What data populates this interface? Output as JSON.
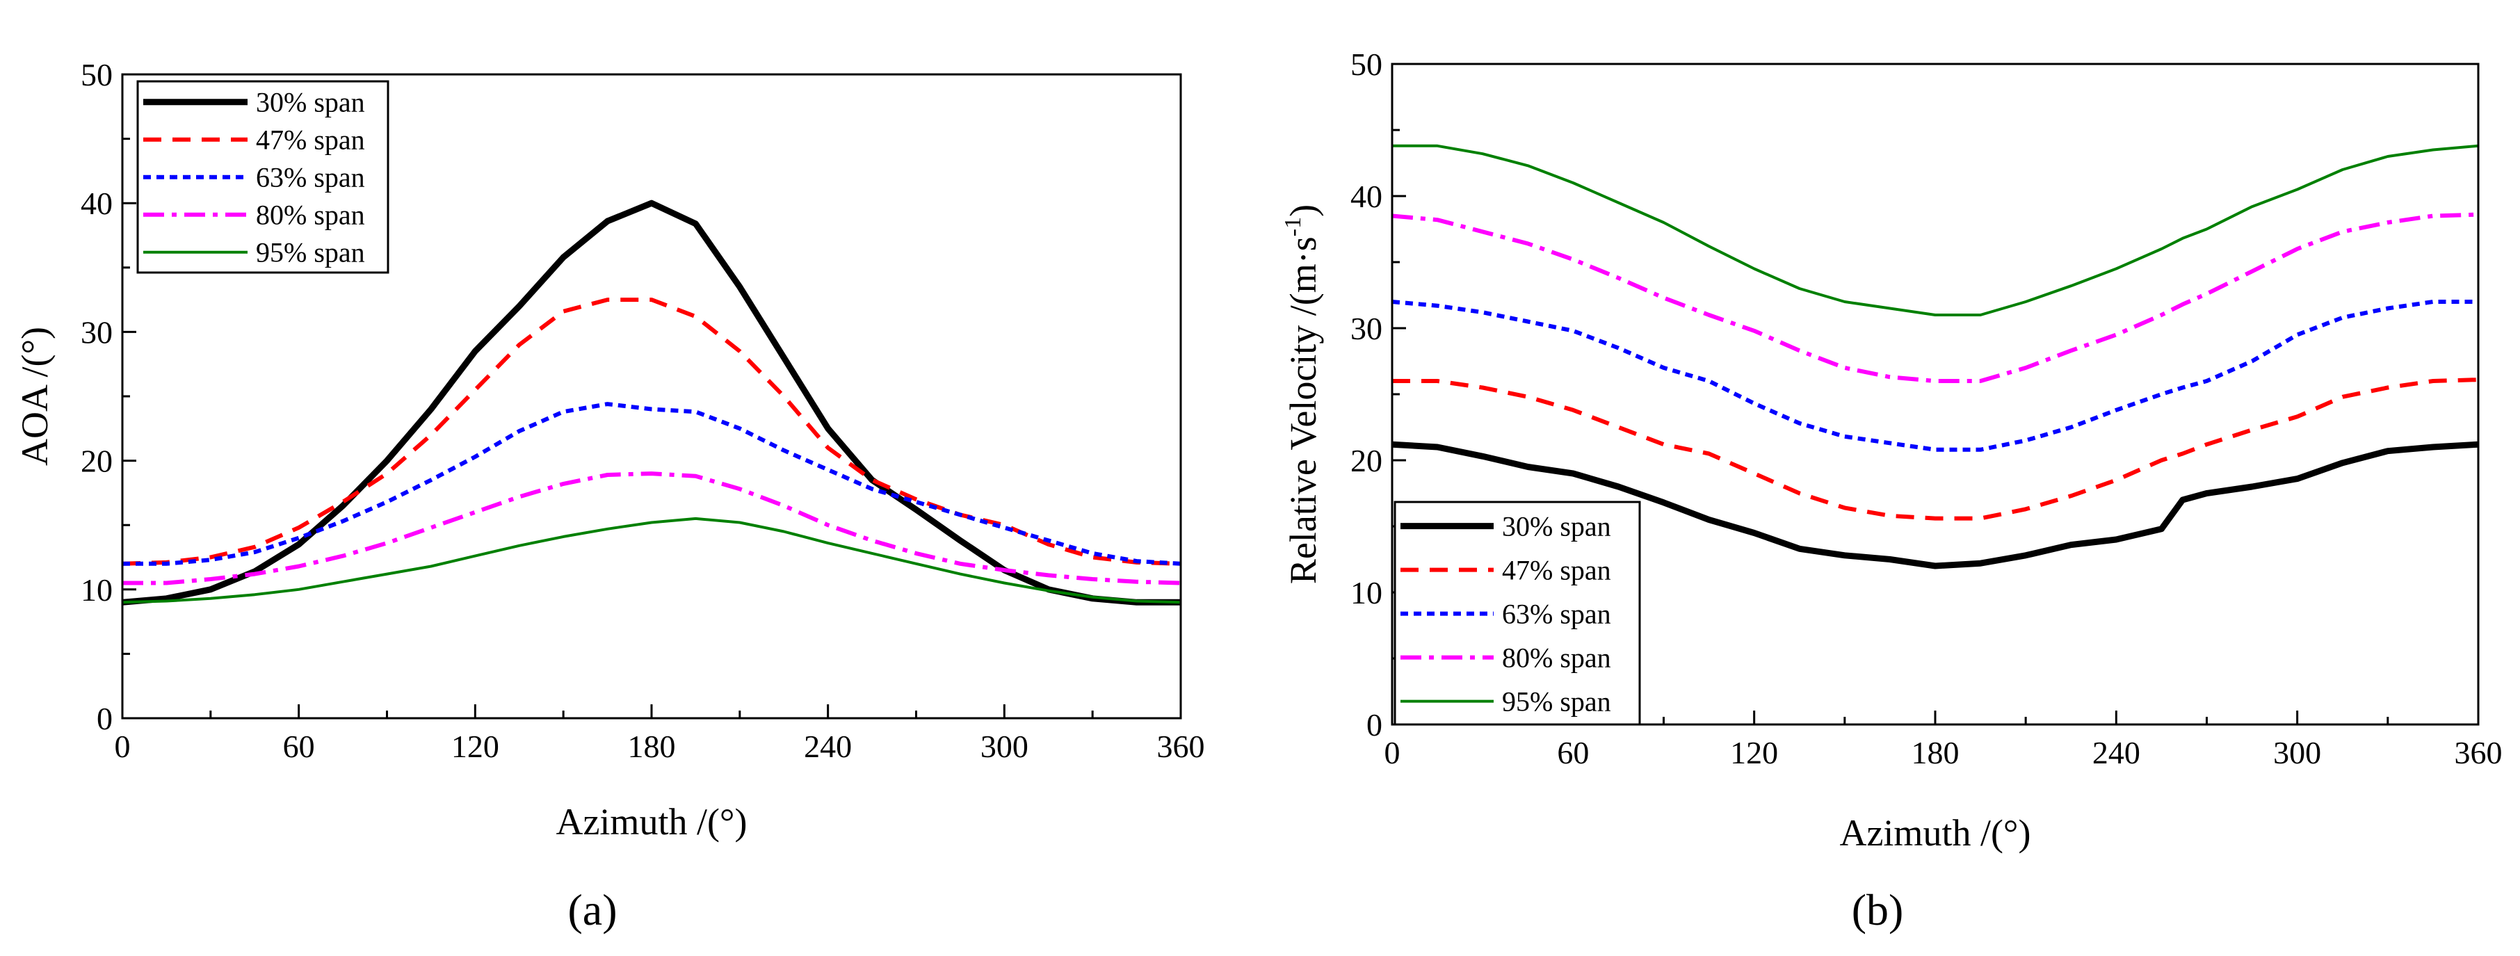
{
  "chart_data": [
    {
      "panel": "a",
      "type": "line",
      "panel_label": "(a)",
      "xlabel": "Azimuth /(°)",
      "ylabel": "AOA /(°)",
      "xlim": [
        0,
        360
      ],
      "ylim": [
        0,
        50
      ],
      "xticks": [
        0,
        60,
        120,
        180,
        240,
        300,
        360
      ],
      "yticks": [
        0,
        10,
        20,
        30,
        40,
        50
      ],
      "legend_position": "top-left",
      "x": [
        0,
        15,
        30,
        45,
        60,
        75,
        90,
        105,
        120,
        135,
        150,
        165,
        180,
        195,
        210,
        225,
        240,
        255,
        270,
        285,
        300,
        315,
        330,
        345,
        360
      ],
      "series": [
        {
          "name": "30% span",
          "color": "#000000",
          "style": "solid",
          "width": 9,
          "values": [
            9.0,
            9.3,
            10.0,
            11.4,
            13.5,
            16.5,
            20.0,
            24.0,
            28.5,
            32.0,
            35.8,
            38.6,
            40.0,
            38.4,
            33.5,
            28.0,
            22.5,
            18.5,
            16.2,
            13.8,
            11.5,
            10.0,
            9.3,
            9.0,
            9.0
          ]
        },
        {
          "name": "47% span",
          "color": "#ff0000",
          "style": "dashed",
          "width": 6,
          "values": [
            12.0,
            12.1,
            12.5,
            13.3,
            14.8,
            16.8,
            19.0,
            22.0,
            25.5,
            29.0,
            31.6,
            32.5,
            32.5,
            31.2,
            28.5,
            25.0,
            21.0,
            18.5,
            17.0,
            15.8,
            15.0,
            13.5,
            12.5,
            12.1,
            12.0
          ]
        },
        {
          "name": "63% span",
          "color": "#0000ff",
          "style": "dotted",
          "width": 6,
          "values": [
            12.0,
            12.0,
            12.3,
            12.9,
            14.0,
            15.3,
            16.8,
            18.5,
            20.3,
            22.3,
            23.8,
            24.4,
            24.0,
            23.8,
            22.5,
            20.8,
            19.3,
            17.8,
            16.8,
            15.8,
            14.8,
            13.8,
            12.8,
            12.2,
            12.0
          ]
        },
        {
          "name": "80% span",
          "color": "#ff00ff",
          "style": "dashdot",
          "width": 6,
          "values": [
            10.5,
            10.5,
            10.8,
            11.2,
            11.8,
            12.6,
            13.6,
            14.8,
            16.0,
            17.2,
            18.2,
            18.9,
            19.0,
            18.8,
            17.8,
            16.5,
            15.0,
            13.8,
            12.8,
            12.0,
            11.5,
            11.1,
            10.8,
            10.6,
            10.5
          ]
        },
        {
          "name": "95% span",
          "color": "#008000",
          "style": "solid",
          "width": 4,
          "values": [
            9.0,
            9.1,
            9.3,
            9.6,
            10.0,
            10.6,
            11.2,
            11.8,
            12.6,
            13.4,
            14.1,
            14.7,
            15.2,
            15.5,
            15.2,
            14.5,
            13.6,
            12.8,
            12.0,
            11.2,
            10.5,
            9.9,
            9.4,
            9.1,
            9.0
          ]
        }
      ]
    },
    {
      "panel": "b",
      "type": "line",
      "panel_label": "(b)",
      "xlabel": "Azimuth /(°)",
      "ylabel_main": "Relative Velocity /(m·s",
      "ylabel_sup": "-1",
      "ylabel_end": ")",
      "xlim": [
        0,
        360
      ],
      "ylim": [
        0,
        50
      ],
      "xticks": [
        0,
        60,
        120,
        180,
        240,
        300,
        360
      ],
      "yticks": [
        0,
        10,
        20,
        30,
        40,
        50
      ],
      "legend_position": "bottom-left",
      "x": [
        0,
        15,
        30,
        45,
        60,
        75,
        90,
        105,
        120,
        135,
        150,
        165,
        180,
        195,
        210,
        225,
        240,
        255,
        262,
        270,
        285,
        300,
        315,
        330,
        345,
        360
      ],
      "series": [
        {
          "name": "30% span",
          "color": "#000000",
          "style": "solid",
          "width": 9,
          "values": [
            21.2,
            21.0,
            20.3,
            19.5,
            19.0,
            18.0,
            16.8,
            15.5,
            14.5,
            13.3,
            12.8,
            12.5,
            12.0,
            12.2,
            12.8,
            13.6,
            14.0,
            14.8,
            17.0,
            17.5,
            18.0,
            18.6,
            19.8,
            20.7,
            21.0,
            21.2
          ]
        },
        {
          "name": "47% span",
          "color": "#ff0000",
          "style": "dashed",
          "width": 6,
          "values": [
            26.0,
            26.0,
            25.5,
            24.8,
            23.8,
            22.5,
            21.2,
            20.5,
            19.0,
            17.5,
            16.4,
            15.8,
            15.6,
            15.6,
            16.3,
            17.3,
            18.5,
            20.0,
            20.5,
            21.2,
            22.3,
            23.3,
            24.8,
            25.5,
            26.0,
            26.1
          ]
        },
        {
          "name": "63% span",
          "color": "#0000ff",
          "style": "dotted",
          "width": 6,
          "values": [
            32.0,
            31.7,
            31.2,
            30.5,
            29.8,
            28.5,
            27.0,
            26.0,
            24.3,
            22.8,
            21.8,
            21.3,
            20.8,
            20.8,
            21.5,
            22.5,
            23.8,
            25.0,
            25.5,
            26.0,
            27.5,
            29.5,
            30.8,
            31.5,
            32.0,
            32.0
          ]
        },
        {
          "name": "80% span",
          "color": "#ff00ff",
          "style": "dashdot",
          "width": 6,
          "values": [
            38.5,
            38.2,
            37.3,
            36.4,
            35.2,
            33.8,
            32.3,
            31.0,
            29.8,
            28.3,
            27.0,
            26.3,
            26.0,
            26.0,
            27.0,
            28.3,
            29.5,
            31.0,
            31.8,
            32.6,
            34.3,
            36.0,
            37.3,
            38.0,
            38.5,
            38.6
          ]
        },
        {
          "name": "95% span",
          "color": "#008000",
          "style": "solid",
          "width": 4,
          "values": [
            43.8,
            43.8,
            43.2,
            42.3,
            41.0,
            39.5,
            38.0,
            36.2,
            34.5,
            33.0,
            32.0,
            31.5,
            31.0,
            31.0,
            32.0,
            33.2,
            34.5,
            36.0,
            36.8,
            37.5,
            39.2,
            40.5,
            42.0,
            43.0,
            43.5,
            43.8
          ]
        }
      ]
    }
  ]
}
